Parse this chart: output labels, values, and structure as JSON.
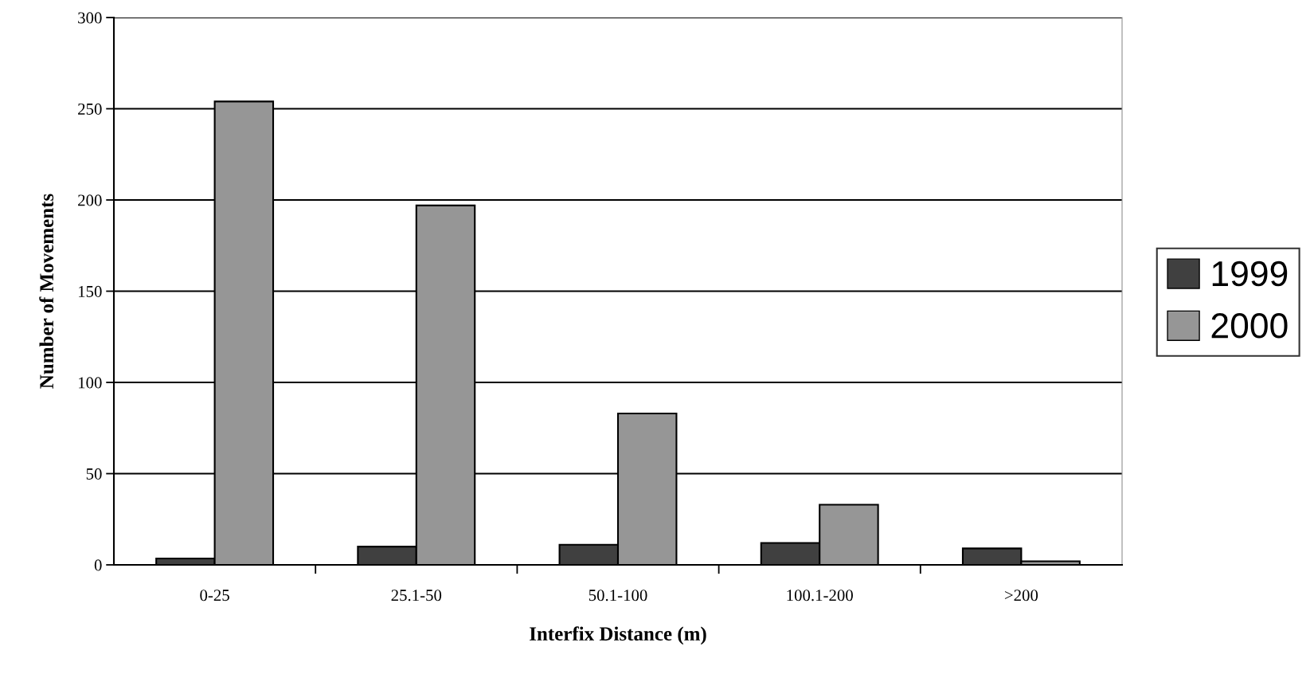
{
  "chart_data": {
    "type": "bar",
    "xlabel": "Interfix Distance (m)",
    "ylabel": "Number of Movements",
    "categories": [
      "0-25",
      "25.1-50",
      "50.1-100",
      "100.1-200",
      ">200"
    ],
    "series": [
      {
        "name": "1999",
        "color": "#404040",
        "values": [
          3.5,
          10,
          11,
          12,
          9
        ]
      },
      {
        "name": "2000",
        "color": "#969696",
        "values": [
          254,
          197,
          83,
          33,
          2
        ]
      }
    ],
    "ylim": [
      0,
      300
    ],
    "yticks": [
      0,
      50,
      100,
      150,
      200,
      250,
      300
    ],
    "grid": "y",
    "legend": "right"
  }
}
